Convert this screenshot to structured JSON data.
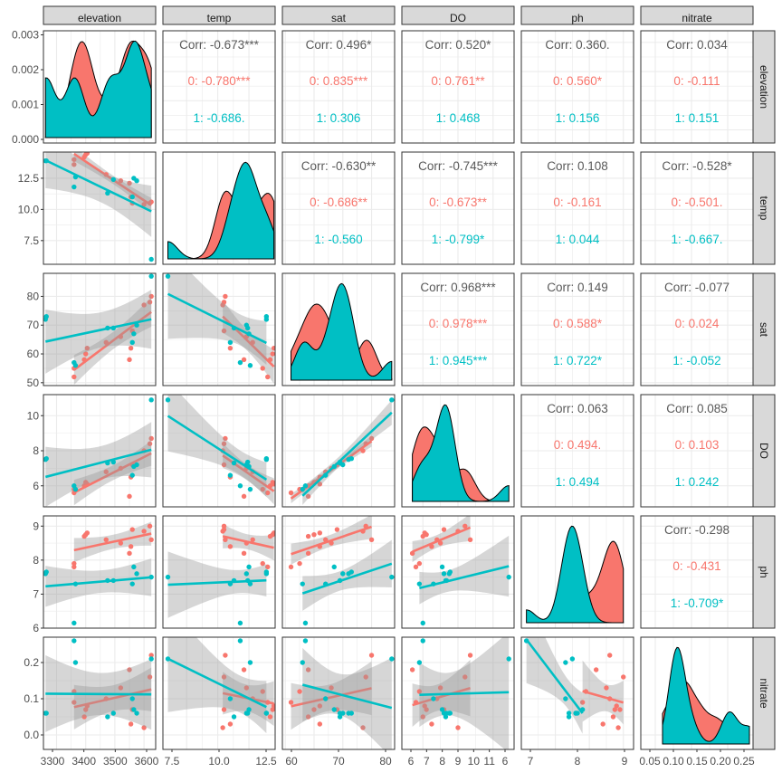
{
  "colors": {
    "group0": "#F8766D",
    "group1": "#00BFC4",
    "overall": "#595959",
    "band": "#999999",
    "strip_fill": "#D9D9D9",
    "grid": "#EBEBEB"
  },
  "chart_data": {
    "type": "scatter",
    "variables": [
      "elevation",
      "temp",
      "sat",
      "DO",
      "ph",
      "nitrate"
    ],
    "groups": [
      "0",
      "1"
    ],
    "axes": {
      "elevation": {
        "range": [
          3255,
          3640
        ],
        "ticks": [
          3300,
          3400,
          3500,
          3600
        ],
        "tick_labels": [
          "3300",
          "3400",
          "3500",
          "3600"
        ]
      },
      "temp": {
        "range": [
          5.6,
          14.6
        ],
        "ticks": [
          7.5,
          10,
          12.5
        ],
        "tick_labels": [
          "7.5",
          "10.0",
          "12.5"
        ]
      },
      "sat": {
        "range": [
          49,
          88
        ],
        "ticks": [
          50,
          60,
          70,
          80
        ],
        "tick_labels": [
          "50",
          "60",
          "70",
          "80"
        ]
      },
      "DO": {
        "range": [
          4.8,
          11.2
        ],
        "ticks": [
          6,
          8,
          10
        ],
        "tick_labels": [
          "6",
          "8",
          "10"
        ]
      },
      "ph": {
        "range": [
          6.0,
          9.3
        ],
        "ticks": [
          6,
          7,
          8,
          9
        ],
        "tick_labels": [
          "6",
          "7",
          "8",
          "9"
        ]
      },
      "nitrate": {
        "range": [
          -0.04,
          0.27
        ],
        "ticks": [
          0,
          0.1,
          0.2
        ],
        "tick_labels": [
          "0.0",
          "0.1",
          "0.2"
        ]
      }
    },
    "bottom_axis_labels": {
      "elevation": [
        "3300",
        "3400",
        "3500",
        "3600"
      ],
      "temp": [
        "7.5",
        "10.0",
        "12.5"
      ],
      "sat": [
        "60",
        "70",
        "80"
      ],
      "DO": [
        "6",
        "7",
        "8",
        "9",
        "10",
        "11",
        "6"
      ],
      "ph": [
        "7",
        "8",
        "9"
      ],
      "nitrate": [
        "0.05",
        "0.10",
        "0.15",
        "0.20",
        "0.25"
      ]
    },
    "density_axis_labels": [
      "0.000",
      "0.001",
      "0.002",
      "0.003"
    ],
    "correlations": [
      {
        "row": "elevation",
        "col": "temp",
        "overall": "Corr: -0.673***",
        "g0": "0: -0.780***",
        "g1": "1: -0.686."
      },
      {
        "row": "elevation",
        "col": "sat",
        "overall": "Corr: 0.496*",
        "g0": "0: 0.835***",
        "g1": "1: 0.306"
      },
      {
        "row": "elevation",
        "col": "DO",
        "overall": "Corr: 0.520*",
        "g0": "0: 0.761**",
        "g1": "1: 0.468"
      },
      {
        "row": "elevation",
        "col": "ph",
        "overall": "Corr: 0.360.",
        "g0": "0: 0.560*",
        "g1": "1: 0.156"
      },
      {
        "row": "elevation",
        "col": "nitrate",
        "overall": "Corr: 0.034",
        "g0": "0: -0.111",
        "g1": "1: 0.151"
      },
      {
        "row": "temp",
        "col": "sat",
        "overall": "Corr: -0.630**",
        "g0": "0: -0.686**",
        "g1": "1: -0.560"
      },
      {
        "row": "temp",
        "col": "DO",
        "overall": "Corr: -0.745***",
        "g0": "0: -0.673**",
        "g1": "1: -0.799*"
      },
      {
        "row": "temp",
        "col": "ph",
        "overall": "Corr: 0.108",
        "g0": "0: -0.161",
        "g1": "1: 0.044"
      },
      {
        "row": "temp",
        "col": "nitrate",
        "overall": "Corr: -0.528*",
        "g0": "0: -0.501.",
        "g1": "1: -0.667."
      },
      {
        "row": "sat",
        "col": "DO",
        "overall": "Corr: 0.968***",
        "g0": "0: 0.978***",
        "g1": "1: 0.945***"
      },
      {
        "row": "sat",
        "col": "ph",
        "overall": "Corr: 0.149",
        "g0": "0: 0.588*",
        "g1": "1: 0.722*"
      },
      {
        "row": "sat",
        "col": "nitrate",
        "overall": "Corr: -0.077",
        "g0": "0: 0.024",
        "g1": "1: -0.052"
      },
      {
        "row": "DO",
        "col": "ph",
        "overall": "Corr: 0.063",
        "g0": "0: 0.494.",
        "g1": "1: 0.494"
      },
      {
        "row": "DO",
        "col": "nitrate",
        "overall": "Corr: 0.085",
        "g0": "0: 0.103",
        "g1": "1: 0.242"
      },
      {
        "row": "ph",
        "col": "nitrate",
        "overall": "Corr: -0.298",
        "g0": "0: -0.431",
        "g1": "1: -0.709*"
      }
    ],
    "observations": {
      "group0": [
        {
          "elevation": 3360,
          "temp": 14.0,
          "sat": 52,
          "DO": 5.6,
          "ph": 7.8,
          "nitrate": 0.09
        },
        {
          "elevation": 3360,
          "temp": 13.6,
          "sat": 55,
          "DO": 5.8,
          "ph": 7.9,
          "nitrate": 0.12
        },
        {
          "elevation": 3395,
          "temp": 14.2,
          "sat": 58,
          "DO": 6.0,
          "ph": 8.7,
          "nitrate": 0.05
        },
        {
          "elevation": 3400,
          "temp": 14.4,
          "sat": 60,
          "DO": 6.2,
          "ph": 8.75,
          "nitrate": 0.07
        },
        {
          "elevation": 3405,
          "temp": 14.5,
          "sat": 62,
          "DO": 6.1,
          "ph": 8.8,
          "nitrate": 0.08
        },
        {
          "elevation": 3470,
          "temp": 12.8,
          "sat": 64,
          "DO": 6.8,
          "ph": 8.6,
          "nitrate": 0.1
        },
        {
          "elevation": 3520,
          "temp": 12.3,
          "sat": 66,
          "DO": 7.0,
          "ph": 8.5,
          "nitrate": 0.13
        },
        {
          "elevation": 3550,
          "temp": 12.1,
          "sat": 58,
          "DO": 5.4,
          "ph": 8.2,
          "nitrate": 0.18
        },
        {
          "elevation": 3555,
          "temp": 11.0,
          "sat": 62,
          "DO": 6.5,
          "ph": 8.4,
          "nitrate": 0.03
        },
        {
          "elevation": 3560,
          "temp": 10.5,
          "sat": 68,
          "DO": 7.2,
          "ph": 8.9,
          "nitrate": 0.07
        },
        {
          "elevation": 3600,
          "temp": 10.4,
          "sat": 77,
          "DO": 8.0,
          "ph": 8.85,
          "nitrate": 0.02
        },
        {
          "elevation": 3620,
          "temp": 10.5,
          "sat": 78,
          "DO": 8.4,
          "ph": 9.0,
          "nitrate": 0.16
        },
        {
          "elevation": 3625,
          "temp": 10.6,
          "sat": 80,
          "DO": 8.7,
          "ph": 8.6,
          "nitrate": 0.22
        }
      ],
      "group1": [
        {
          "elevation": 3262,
          "temp": 13.9,
          "sat": 72,
          "DO": 7.5,
          "ph": 7.6,
          "nitrate": 0.06
        },
        {
          "elevation": 3265,
          "temp": 13.9,
          "sat": 73,
          "DO": 7.55,
          "ph": 7.65,
          "nitrate": 0.06
        },
        {
          "elevation": 3360,
          "temp": 11.8,
          "sat": 57,
          "DO": 6.0,
          "ph": 6.15,
          "nitrate": 0.26
        },
        {
          "elevation": 3365,
          "temp": 12.6,
          "sat": 56,
          "DO": 5.8,
          "ph": 7.3,
          "nitrate": 0.2
        },
        {
          "elevation": 3475,
          "temp": 11.3,
          "sat": 69,
          "DO": 7.3,
          "ph": 7.4,
          "nitrate": 0.05
        },
        {
          "elevation": 3495,
          "temp": 12.4,
          "sat": 69,
          "DO": 7.35,
          "ph": 7.4,
          "nitrate": 0.06
        },
        {
          "elevation": 3560,
          "temp": 11.0,
          "sat": 64,
          "DO": 6.6,
          "ph": 7.3,
          "nitrate": 0.1
        },
        {
          "elevation": 3565,
          "temp": 12.5,
          "sat": 67,
          "DO": 7.1,
          "ph": 7.8,
          "nitrate": 0.07
        },
        {
          "elevation": 3575,
          "temp": 12.3,
          "sat": 70,
          "DO": 7.2,
          "ph": 7.6,
          "nitrate": 0.06
        },
        {
          "elevation": 3625,
          "temp": 6.0,
          "sat": 87,
          "DO": 10.9,
          "ph": 7.5,
          "nitrate": 0.21
        }
      ]
    }
  }
}
